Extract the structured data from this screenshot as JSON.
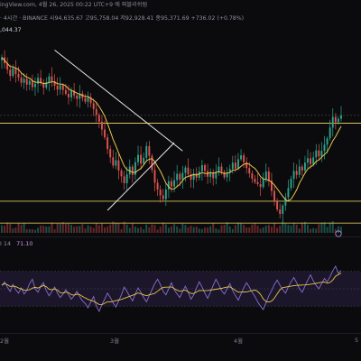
{
  "header": {
    "source": "ingView.com, 4월 26, 2025 00:22 UTC+9 에 퍼블리쉬됨",
    "interval": "· 4시간 · BINANCE",
    "open": "시94,635.67",
    "high": "고95,758.04",
    "low": "저92,928.41",
    "close": "종95,371.69",
    "change": "+736.02 (+0.78%)"
  },
  "price_label": ",044.37",
  "rsi": {
    "label": "I 14",
    "value": "71.10"
  },
  "chart_data": {
    "type": "line",
    "x_labels": [
      "2월",
      "3월",
      "4월",
      "5"
    ],
    "series": [
      {
        "values": [
          108000,
          106800,
          105500,
          104200,
          105800,
          104600,
          103900,
          102800,
          103600,
          102400,
          103200,
          101900,
          102600,
          103800,
          102700,
          101800,
          102900,
          104100,
          103100,
          102200,
          101400,
          102300,
          101300,
          100500,
          99800,
          101200,
          100200,
          99500,
          100600,
          99700,
          98900,
          99800,
          98600,
          97400,
          96200,
          94800,
          93200,
          91600,
          89200,
          87500,
          85800,
          86900,
          84800,
          83600,
          82200,
          84000,
          85600,
          83900,
          86500,
          88000,
          86200,
          87400,
          89800,
          87800,
          84900,
          82300,
          80900,
          79700,
          78900,
          80900,
          82600,
          81500,
          82800,
          84100,
          82900,
          84300,
          85400,
          84000,
          82900,
          84200,
          83300,
          84600,
          85900,
          84700,
          83500,
          84400,
          83200,
          84500,
          85600,
          84500,
          83400,
          84300,
          85100,
          86400,
          85200,
          87100,
          87900,
          86500,
          85300,
          84200,
          83100,
          82400,
          82000,
          81400,
          83000,
          84600,
          82700,
          80600,
          78400,
          76800,
          75900,
          77600,
          79300,
          81200,
          83100,
          84700,
          83900,
          85600,
          84800,
          86400,
          87300,
          86100,
          87500,
          88900,
          87700,
          88800,
          90100,
          91400,
          93600,
          95800,
          94700,
          95400,
          96100
        ]
      },
      {
        "values": [
          54,
          58,
          52,
          47,
          55,
          49,
          45,
          51,
          44,
          48,
          56,
          61,
          50,
          46,
          53,
          57,
          48,
          42,
          47,
          52,
          45,
          40,
          44,
          49,
          43,
          38,
          42,
          47,
          41,
          36,
          33,
          28,
          35,
          41,
          30,
          24,
          32,
          38,
          45,
          40,
          34,
          29,
          36,
          43,
          52,
          47,
          41,
          36,
          44,
          51,
          46,
          40,
          35,
          42,
          49,
          56,
          61,
          55,
          47,
          43,
          50,
          57,
          49,
          44,
          40,
          47,
          53,
          46,
          38,
          43,
          51,
          58,
          52,
          45,
          39,
          46,
          54,
          61,
          55,
          48,
          44,
          50,
          56,
          48,
          42,
          37,
          44,
          51,
          57,
          52,
          46,
          41,
          35,
          30,
          26,
          34,
          42,
          48,
          55,
          60,
          54,
          49,
          45,
          52,
          58,
          63,
          57,
          50,
          46,
          53,
          60,
          66,
          59,
          54,
          50,
          56,
          62,
          58,
          64,
          71,
          76,
          68,
          71.1
        ]
      }
    ],
    "trendlines": {
      "descending": {
        "from": [
          19,
          109500
        ],
        "to": [
          65,
          88800
        ]
      },
      "ascending": {
        "from": [
          38,
          76600
        ],
        "to": [
          62,
          90500
        ]
      }
    },
    "horizontal_levels": [
      94500,
      78500,
      74000
    ],
    "ylim": [
      72000,
      112000
    ]
  }
}
